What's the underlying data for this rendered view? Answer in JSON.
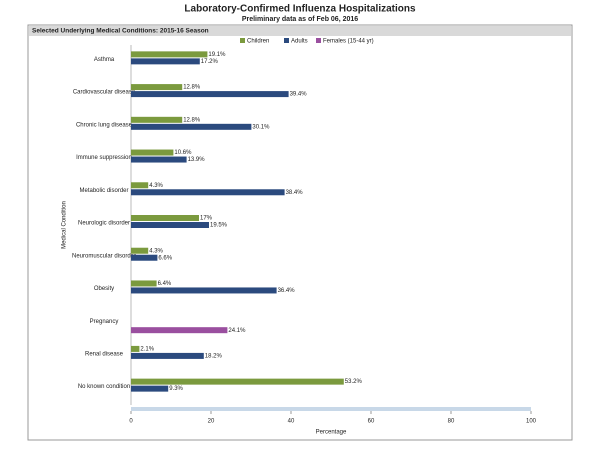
{
  "chart_data": {
    "type": "hbar",
    "title": "Laboratory-Confirmed Influenza Hospitalizations",
    "subtitle": "Preliminary data as of Feb 06, 2016",
    "header": "Selected Underlying Medical Conditions: 2015-16 Season",
    "x_label": "Percentage",
    "y_label": "Medical Condition",
    "categories": [
      "Asthma",
      "Cardiovascular disease",
      "Chronic lung disease",
      "Immune suppression",
      "Metabolic disorder",
      "Neurologic disorder",
      "Neuromuscular disorder",
      "Obesity",
      "Pregnancy",
      "Renal disease",
      "No known condition"
    ],
    "series": [
      {
        "name": "Children",
        "color": "#7b9a3e",
        "values": [
          19.1,
          12.8,
          12.8,
          10.6,
          4.3,
          17,
          4.3,
          6.4,
          null,
          2.1,
          53.2
        ],
        "value_labels": [
          "19.1%",
          "12.8%",
          "12.8%",
          "10.6%",
          "4.3%",
          "17%",
          "4.3%",
          "6.4%",
          null,
          "2.1%",
          "53.2%"
        ]
      },
      {
        "name": "Adults",
        "color": "#2b4a7e",
        "values": [
          17.2,
          39.4,
          30.1,
          13.9,
          38.4,
          19.5,
          6.6,
          36.4,
          null,
          18.2,
          9.3
        ],
        "value_labels": [
          "17.2%",
          "39.4%",
          "30.1%",
          "13.9%",
          "38.4%",
          "19.5%",
          "6.6%",
          "36.4%",
          null,
          "18.2%",
          "9.3%"
        ]
      },
      {
        "name": "Females (15-44 yr)",
        "color": "#9a4f9f",
        "values": [
          null,
          null,
          null,
          null,
          null,
          null,
          null,
          null,
          24.1,
          null,
          null
        ],
        "value_labels": [
          null,
          null,
          null,
          null,
          null,
          null,
          null,
          null,
          "24.1%",
          null,
          null
        ]
      }
    ],
    "xlim": [
      0,
      100
    ],
    "xticks": [
      0,
      20,
      40,
      60,
      80,
      100
    ],
    "grid": false,
    "legend": "top"
  }
}
